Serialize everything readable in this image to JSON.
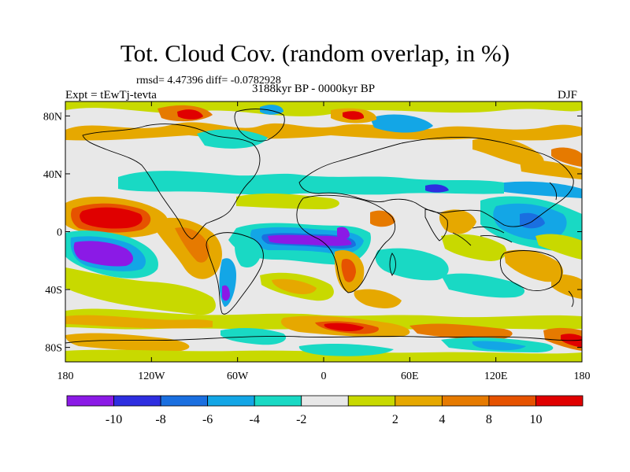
{
  "title": "Tot. Cloud Cov. (random overlap, in %)",
  "stats": "rmsd= 4.47396 diff= -0.0782928",
  "experiment": "Expt = tEwTj-tevta",
  "period": "3188kyr BP - 0000kyr BP",
  "season": "DJF",
  "lon_ticks": [
    "180",
    "120W",
    "60W",
    "0",
    "60E",
    "120E",
    "180"
  ],
  "lat_ticks": [
    "80N",
    "40N",
    "0",
    "40S",
    "80S"
  ],
  "colorbar": {
    "colors": [
      "#8b1ae6",
      "#2e2ee0",
      "#1a6fe0",
      "#13a6e6",
      "#19d9c4",
      "#e8e8e8",
      "#c8d900",
      "#e6a800",
      "#e67a00",
      "#e65200",
      "#e00000"
    ],
    "labels": [
      "-10",
      "-8",
      "-6",
      "-4",
      "-2",
      "2",
      "4",
      "8",
      "10"
    ]
  },
  "map_colors": {
    "neutral": "#e8e8e8",
    "coast": "#000000"
  }
}
